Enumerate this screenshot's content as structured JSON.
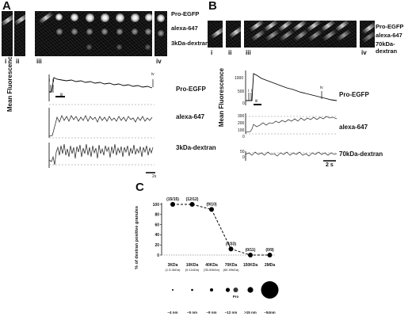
{
  "panels": {
    "A": {
      "letter": "A",
      "rows": [
        "Pro-EGFP",
        "alexa-647",
        "3kDa-dextran"
      ],
      "romans": [
        "i",
        "ii",
        "iii",
        "iv"
      ],
      "traces": [
        "Pro-EGFP",
        "alexa-647",
        "3kDa-dextran"
      ],
      "markers": [
        "i",
        "ii",
        "iii",
        "iv"
      ],
      "ylabel": "Mean Fluorescence",
      "scalebar": "2s"
    },
    "B": {
      "letter": "B",
      "rows": [
        "Pro-EGFP",
        "alexa-647",
        "70kDa-dextran"
      ],
      "romans": [
        "i",
        "ii",
        "iii",
        "iv"
      ],
      "traces": [
        "Pro-EGFP",
        "alexa-647",
        "70kDa-dextran"
      ],
      "markers": [
        "i",
        "ii",
        "iii",
        "iv"
      ],
      "ylabel": "Mean Fluorescence",
      "scalebar": "2 s",
      "ticks": {
        "egfp": [
          "1000",
          "500",
          "0"
        ],
        "alexa": [
          "300",
          "200",
          "100",
          "0"
        ],
        "dextran": [
          "50",
          "0"
        ]
      }
    },
    "C": {
      "letter": "C"
    }
  },
  "chart_data": {
    "type": "line",
    "title": "",
    "ylabel": "% of dextran positive granules",
    "xlabel": "",
    "ylim": [
      0,
      100
    ],
    "yticks": [
      "0",
      "20",
      "40",
      "60",
      "80",
      "100"
    ],
    "categories": [
      "3KDa",
      "10KDa",
      "40KDa",
      "70KDa",
      "150KDa",
      "2MDa"
    ],
    "subcategories": [
      "(1.5-3kDa)",
      "(9-11kDa)",
      "(35-50kDa)",
      "(60-90kDa)",
      "",
      ""
    ],
    "values": [
      100,
      100,
      90,
      12,
      0,
      0
    ],
    "point_labels": [
      "(15/15)",
      "(12/12)",
      "(9/10)",
      "(4/33)",
      "(0/11)",
      "(0/9)"
    ],
    "size_labels": [
      "~4 nm",
      "~5 nm",
      "~9 nm",
      "~12 nm",
      ">15 nm",
      "~54nm"
    ],
    "pro_label": "Pro",
    "line_style": "dashed",
    "reference_line_at": 0
  }
}
